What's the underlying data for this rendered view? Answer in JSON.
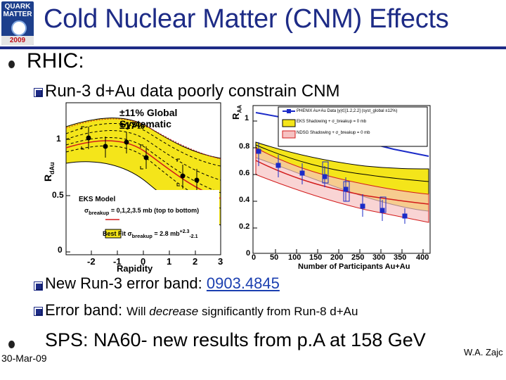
{
  "header": {
    "title": "Cold Nuclear Matter (CNM) Effects",
    "logo": {
      "line1": "QUARK",
      "line2": "MATTER",
      "year": "2009"
    }
  },
  "bullets": {
    "rhic": "RHIC:",
    "run3": "Run-3 d+Au data poorly constrain CNM",
    "new_run3_prefix": "New Run-3 error band: ",
    "new_run3_link": "0903.4845",
    "error_band_a": "Error band: ",
    "error_band_b": "Will ",
    "error_band_c": "decrease",
    "error_band_d": " significantly from Run-8 d+Au",
    "sps": "SPS:  NA60- new results from p.A at 158 GeV"
  },
  "left_plot": {
    "ylabel": "R",
    "ylabel_sub": "dAu",
    "xlabel": "Rapidity",
    "y_ticks": [
      "1",
      "0.5",
      "0"
    ],
    "x_ticks": [
      "-2",
      "-1",
      "0",
      "1",
      "2",
      "3"
    ],
    "partial_tick": "3",
    "annot_global": "±11% Global Systematic",
    "annot_pct": "±17%",
    "legend_title": "EKS Model",
    "legend_line1_prefix": "σ",
    "legend_line1_sub": "breakup",
    "legend_line1": " = 0,1,2,3.5 mb (top to bottom)",
    "legend_line2_prefix": "Best Fit σ",
    "legend_line2_sub": "breakup",
    "legend_line2": " = 2.8 mb",
    "legend_line2_err_up": "+2.3",
    "legend_line2_err_dn": "-2.1"
  },
  "right_plot": {
    "ylabel": "R",
    "ylabel_sub": "AA",
    "xlabel": "Number of Participants Au+Au",
    "y_ticks": [
      "1",
      "0.8",
      "0.6",
      "0.4",
      "0.2",
      "0"
    ],
    "x_ticks": [
      "0",
      "50",
      "100",
      "150",
      "200",
      "250",
      "300",
      "350",
      "400"
    ],
    "legend": [
      "PHENIX Au+Au Data |y|∈[1.2,2.2] (syst_global ±12%)",
      "EKS Shadowing + σ_breakup = 0 mb",
      "NDSG Shadowing + σ_breakup = 0 mb"
    ]
  },
  "footer": {
    "date": "30-Mar-09",
    "author": "W.A. Zajc"
  }
}
